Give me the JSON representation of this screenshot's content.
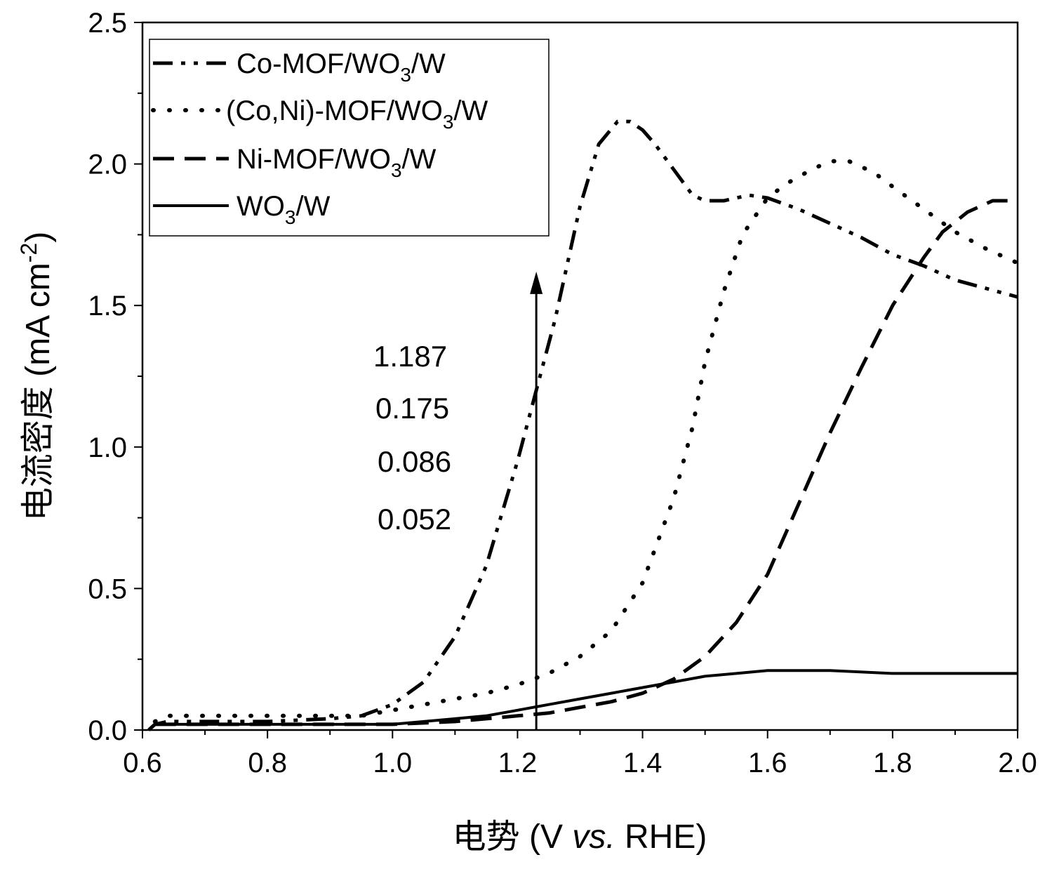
{
  "chart_data": {
    "type": "line",
    "title": "",
    "xlabel": {
      "prefix": "电势 (V ",
      "italic": "vs.",
      "suffix": " RHE)"
    },
    "ylabel": {
      "text": "电流密度 (mA cm",
      "sup": "-2",
      "close": ")"
    },
    "xlim": [
      0.6,
      2.0
    ],
    "ylim": [
      0.0,
      2.5
    ],
    "x_ticks": [
      "0.6",
      "0.8",
      "1.0",
      "1.2",
      "1.4",
      "1.6",
      "1.8",
      "2.0"
    ],
    "y_ticks": [
      "0.0",
      "0.5",
      "1.0",
      "1.5",
      "2.0",
      "2.5"
    ],
    "legend_position": "top-left",
    "series": [
      {
        "name": "Co-MOF/WO3/W",
        "label_parts": [
          "Co-MOF/WO",
          "3",
          "/W"
        ],
        "style": "dash-dot-dot",
        "x": [
          0.61,
          0.62,
          0.64,
          0.7,
          0.8,
          0.9,
          0.95,
          1.0,
          1.05,
          1.1,
          1.15,
          1.2,
          1.23,
          1.26,
          1.3,
          1.33,
          1.36,
          1.38,
          1.4,
          1.42,
          1.45,
          1.48,
          1.5,
          1.53,
          1.57,
          1.6,
          1.65,
          1.7,
          1.75,
          1.8,
          1.85,
          1.9,
          1.95,
          2.0
        ],
        "y": [
          0.0,
          0.02,
          0.03,
          0.03,
          0.03,
          0.04,
          0.05,
          0.09,
          0.17,
          0.33,
          0.58,
          0.95,
          1.2,
          1.45,
          1.85,
          2.07,
          2.15,
          2.15,
          2.12,
          2.07,
          1.98,
          1.89,
          1.87,
          1.87,
          1.89,
          1.88,
          1.84,
          1.79,
          1.74,
          1.68,
          1.64,
          1.59,
          1.56,
          1.53
        ]
      },
      {
        "name": "(Co,Ni)-MOF/WO3/W",
        "label_parts": [
          "(Co,Ni)-MOF/WO",
          "3",
          "/W"
        ],
        "style": "dotted",
        "x": [
          0.62,
          0.64,
          0.7,
          0.8,
          0.9,
          0.95,
          1.0,
          1.05,
          1.1,
          1.15,
          1.2,
          1.25,
          1.3,
          1.35,
          1.4,
          1.45,
          1.48,
          1.5,
          1.53,
          1.56,
          1.6,
          1.63,
          1.67,
          1.7,
          1.73,
          1.77,
          1.8,
          1.85,
          1.9,
          1.95,
          2.0
        ],
        "y": [
          0.03,
          0.05,
          0.05,
          0.05,
          0.05,
          0.05,
          0.07,
          0.09,
          0.11,
          0.13,
          0.16,
          0.2,
          0.26,
          0.35,
          0.52,
          0.82,
          1.07,
          1.3,
          1.55,
          1.75,
          1.88,
          1.93,
          1.98,
          2.01,
          2.01,
          1.97,
          1.92,
          1.84,
          1.76,
          1.7,
          1.65
        ]
      },
      {
        "name": "Ni-MOF/WO3/W",
        "label_parts": [
          "Ni-MOF/WO",
          "3",
          "/W"
        ],
        "style": "dashed",
        "x": [
          0.62,
          0.7,
          0.8,
          0.9,
          1.0,
          1.1,
          1.15,
          1.2,
          1.25,
          1.3,
          1.35,
          1.4,
          1.45,
          1.5,
          1.55,
          1.6,
          1.65,
          1.7,
          1.75,
          1.8,
          1.85,
          1.88,
          1.92,
          1.96,
          2.0
        ],
        "y": [
          0.02,
          0.02,
          0.02,
          0.02,
          0.02,
          0.03,
          0.04,
          0.05,
          0.06,
          0.08,
          0.1,
          0.13,
          0.18,
          0.26,
          0.38,
          0.55,
          0.8,
          1.05,
          1.28,
          1.5,
          1.67,
          1.76,
          1.83,
          1.87,
          1.87
        ]
      },
      {
        "name": "WO3/W",
        "label_parts": [
          "WO",
          "3",
          "/W"
        ],
        "style": "solid",
        "x": [
          0.61,
          0.62,
          0.64,
          0.7,
          0.8,
          0.9,
          1.0,
          1.05,
          1.1,
          1.15,
          1.2,
          1.25,
          1.3,
          1.35,
          1.4,
          1.45,
          1.5,
          1.55,
          1.6,
          1.65,
          1.7,
          1.8,
          1.9,
          2.0
        ],
        "y": [
          0.0,
          0.02,
          0.02,
          0.02,
          0.02,
          0.02,
          0.02,
          0.03,
          0.04,
          0.05,
          0.07,
          0.09,
          0.11,
          0.13,
          0.15,
          0.17,
          0.19,
          0.2,
          0.21,
          0.21,
          0.21,
          0.2,
          0.2,
          0.2
        ]
      }
    ],
    "arrow": {
      "x": 1.23,
      "y_start": 0.0,
      "y_end": 1.62
    },
    "annotations": [
      "1.187",
      "0.175",
      "0.086",
      "0.052"
    ]
  }
}
